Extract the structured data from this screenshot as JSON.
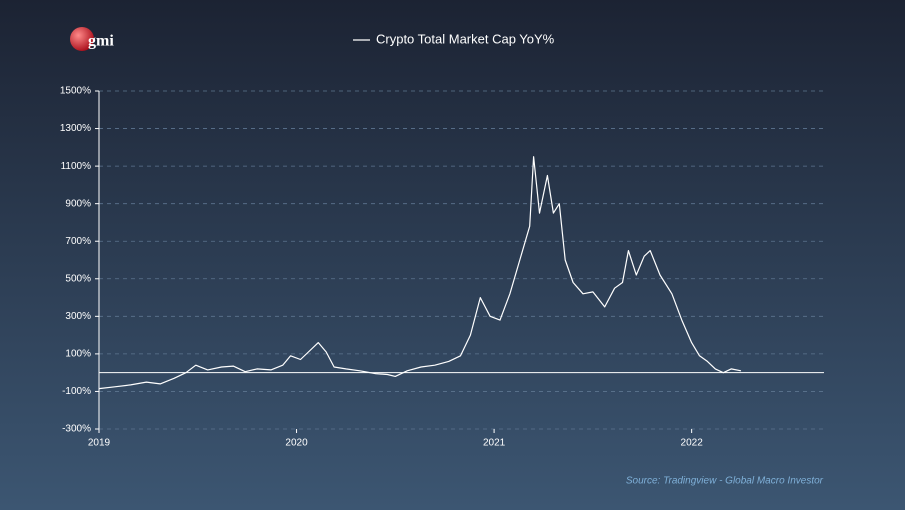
{
  "chart_data": {
    "type": "line",
    "logo": "gmi",
    "title": "Crypto Total Market Cap YoY%",
    "source": "Source: Tradingview - Global Macro Investor",
    "xlim": [
      2019,
      2022.67
    ],
    "xticks": [
      2019,
      2020,
      2021,
      2022
    ],
    "ylim": [
      -300,
      1500
    ],
    "yticks": [
      {
        "value": -300,
        "label": "-300%"
      },
      {
        "value": -100,
        "label": "-100%"
      },
      {
        "value": 100,
        "label": "100%"
      },
      {
        "value": 300,
        "label": "300%"
      },
      {
        "value": 500,
        "label": "500%"
      },
      {
        "value": 700,
        "label": "700%"
      },
      {
        "value": 900,
        "label": "900%"
      },
      {
        "value": 1100,
        "label": "1100%"
      },
      {
        "value": 1300,
        "label": "1300%"
      },
      {
        "value": 1500,
        "label": "1500%"
      }
    ],
    "grid": true,
    "series": [
      {
        "name": "Crypto Total Market Cap YoY%",
        "color": "#ffffff",
        "x": [
          2019.0,
          2019.08,
          2019.16,
          2019.24,
          2019.31,
          2019.38,
          2019.44,
          2019.49,
          2019.55,
          2019.62,
          2019.68,
          2019.74,
          2019.8,
          2019.87,
          2019.93,
          2019.97,
          2020.02,
          2020.06,
          2020.11,
          2020.15,
          2020.19,
          2020.25,
          2020.32,
          2020.4,
          2020.46,
          2020.5,
          2020.56,
          2020.63,
          2020.7,
          2020.77,
          2020.83,
          2020.88,
          2020.93,
          2020.98,
          2021.03,
          2021.08,
          2021.13,
          2021.18,
          2021.2,
          2021.23,
          2021.27,
          2021.3,
          2021.33,
          2021.36,
          2021.4,
          2021.45,
          2021.5,
          2021.56,
          2021.61,
          2021.65,
          2021.68,
          2021.72,
          2021.76,
          2021.79,
          2021.84,
          2021.9,
          2021.95,
          2022.0,
          2022.04,
          2022.08,
          2022.12,
          2022.16,
          2022.2,
          2022.25
        ],
        "values": [
          -85,
          -75,
          -65,
          -50,
          -60,
          -30,
          0,
          40,
          15,
          30,
          35,
          5,
          20,
          15,
          40,
          90,
          70,
          110,
          160,
          110,
          30,
          20,
          10,
          -5,
          -10,
          -20,
          10,
          30,
          40,
          60,
          90,
          200,
          400,
          300,
          280,
          420,
          600,
          780,
          1150,
          850,
          1050,
          850,
          900,
          600,
          480,
          420,
          430,
          350,
          450,
          480,
          650,
          520,
          620,
          650,
          520,
          420,
          280,
          160,
          90,
          60,
          20,
          0,
          20,
          10
        ]
      }
    ]
  }
}
